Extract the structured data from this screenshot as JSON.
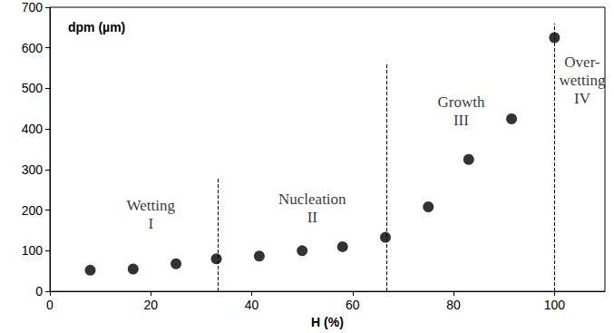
{
  "chart_data": {
    "type": "scatter",
    "ylabel": "dpm (µm)",
    "xlabel": "H (%)",
    "x": [
      8,
      16.5,
      25,
      33,
      41.5,
      50,
      58,
      66.5,
      75,
      83,
      91.5,
      100
    ],
    "values": [
      52,
      55,
      68,
      80,
      87,
      100,
      110,
      133,
      208,
      325,
      425,
      625
    ],
    "color": "#000000",
    "marker": "circle",
    "xlim": [
      0,
      110
    ],
    "xticks": [
      0,
      20,
      40,
      60,
      80,
      100
    ],
    "ylim": [
      0,
      700
    ],
    "yticks": [
      0,
      100,
      200,
      300,
      400,
      500,
      600,
      700
    ],
    "grid": false,
    "dividers": [
      {
        "x": 33.3,
        "ymax": 280
      },
      {
        "x": 66.7,
        "ymax": 560
      },
      {
        "x": 100,
        "ymax": 660
      }
    ],
    "annotations": [
      {
        "text": "Wetting\nI",
        "x": 20,
        "y": 190
      },
      {
        "text": "Nucleation\nII",
        "x": 52,
        "y": 205
      },
      {
        "text": "Growth\nIII",
        "x": 81.5,
        "y": 445
      },
      {
        "text": "Over-\nwetting\nIV",
        "x": 105.5,
        "y": 520
      }
    ]
  }
}
